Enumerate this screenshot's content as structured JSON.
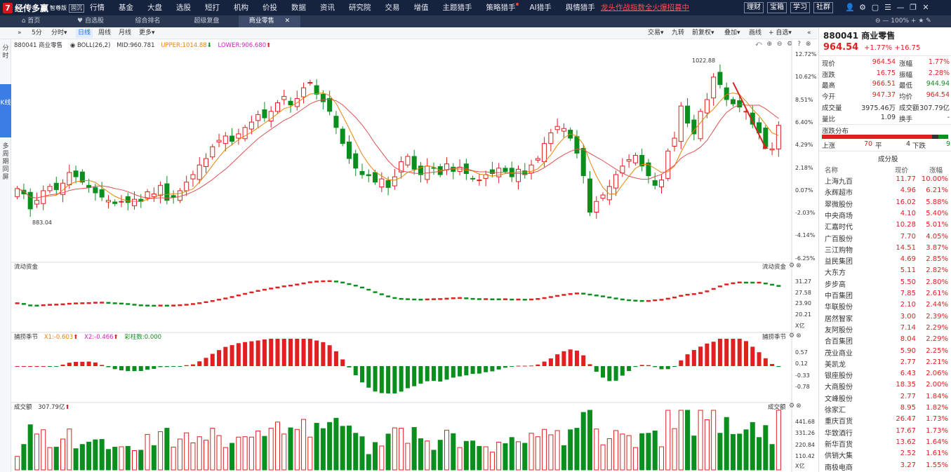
{
  "topbar": {
    "logo": "经传多赢",
    "logo_sub": "智尊版",
    "logo_badge": "固沉",
    "menu": [
      "行情",
      "基金",
      "大盘",
      "选股",
      "短打",
      "机构",
      "价投",
      "数据",
      "资讯",
      "研究院",
      "交易",
      "增值",
      "主题猎手",
      "策略猎手",
      "AI猎手",
      "舆情猎手"
    ],
    "promo": "龙头作战指数全火爆招募中",
    "buttons": [
      "理财",
      "宝箱",
      "学习",
      "社群"
    ]
  },
  "tabs": {
    "items": [
      "首页",
      "自选股",
      "综合排名",
      "超级复盘",
      "商业零售"
    ],
    "zoom": "100%"
  },
  "chartbar": {
    "periods": [
      "5分",
      "分时",
      "日线",
      "周线",
      "月线",
      "更多"
    ],
    "active": "日线",
    "right": [
      "交易",
      "九转",
      "前复权",
      "叠加",
      "画线",
      "自选"
    ]
  },
  "side": {
    "fenshi": "分时",
    "kxian": "K线",
    "zhouqi": "多周期同屏"
  },
  "legend": {
    "code": "880041 商业零售",
    "boll": "BOLL(26,2)",
    "mid": "MID:960.781",
    "upper": "UPPER:1014.88",
    "lower": "LOWER:906.680"
  },
  "main_axis": [
    "12.72%",
    "10.62%",
    "8.51%",
    "6.40%",
    "4.29%",
    "2.18%",
    "0.07%",
    "-2.03%",
    "-4.14%",
    "-6.25%"
  ],
  "hi_label": "1022.88",
  "lo_label": "883.04",
  "flow": {
    "title": "流动资金",
    "axis": [
      "31.27",
      "27.58",
      "23.90",
      "20.21"
    ],
    "unit": "X亿"
  },
  "capture": {
    "title": "捕捞季节",
    "x1": "X1:-0.603",
    "x2": "X2:-0.466",
    "cz": "彩柱数:0.000",
    "axis": [
      "0.57",
      "0.12",
      "-0.33",
      "-0.78"
    ]
  },
  "vol": {
    "title": "成交额",
    "value": "307.79亿",
    "axis": [
      "441.68",
      "331.26",
      "220.84",
      "110.42"
    ],
    "unit": "X亿"
  },
  "quote": {
    "title": "880041 商业零售",
    "price": "964.54",
    "change": "+1.77%  +16.75",
    "rows": [
      [
        "现价",
        "964.54",
        "涨幅",
        "1.77%"
      ],
      [
        "涨跌",
        "16.75",
        "振幅",
        "2.28%"
      ],
      [
        "最高",
        "966.51",
        "最低",
        "944.94"
      ],
      [
        "今开",
        "947.37",
        "均价",
        "964.54"
      ],
      [
        "成交量",
        "3975.46万",
        "成交额",
        "307.79亿"
      ],
      [
        "量比",
        "1.09",
        "换手",
        "-"
      ]
    ],
    "dist_title": "涨跌分布",
    "up_label": "上涨",
    "up": "70",
    "flat_label": "平",
    "flat": "4",
    "down_label": "下跌",
    "down": "9",
    "comp_title": "成分股",
    "hdr": [
      "名称",
      "现价",
      "涨幅"
    ],
    "stocks": [
      [
        "上海九百",
        "11.77",
        "10.00%"
      ],
      [
        "永辉超市",
        "4.96",
        "6.21%"
      ],
      [
        "翠微股份",
        "16.02",
        "5.88%"
      ],
      [
        "中央商场",
        "4.10",
        "5.40%"
      ],
      [
        "汇嘉时代",
        "10.28",
        "5.01%"
      ],
      [
        "广百股份",
        "7.70",
        "4.05%"
      ],
      [
        "三江购物",
        "14.51",
        "3.87%"
      ],
      [
        "益民集团",
        "4.69",
        "2.85%"
      ],
      [
        "大东方",
        "5.11",
        "2.82%"
      ],
      [
        "步步高",
        "5.50",
        "2.80%"
      ],
      [
        "中百集团",
        "7.85",
        "2.61%"
      ],
      [
        "华联股份",
        "2.10",
        "2.44%"
      ],
      [
        "居然智家",
        "3.00",
        "2.39%"
      ],
      [
        "友阿股份",
        "7.14",
        "2.29%"
      ],
      [
        "合百集团",
        "8.04",
        "2.29%"
      ],
      [
        "茂业商业",
        "5.90",
        "2.25%"
      ],
      [
        "美凯龙",
        "2.77",
        "2.21%"
      ],
      [
        "银座股份",
        "6.43",
        "2.06%"
      ],
      [
        "大商股份",
        "18.35",
        "2.00%"
      ],
      [
        "文峰股份",
        "2.77",
        "1.84%"
      ],
      [
        "徐家汇",
        "8.95",
        "1.82%"
      ],
      [
        "重庆百货",
        "26.47",
        "1.73%"
      ],
      [
        "华致酒行",
        "17.67",
        "1.73%"
      ],
      [
        "新华百货",
        "13.62",
        "1.64%"
      ],
      [
        "供销大集",
        "2.52",
        "1.61%"
      ],
      [
        "南极电商",
        "3.27",
        "1.55%"
      ]
    ]
  },
  "chart_data": {
    "type": "candlestick",
    "candles_close_pct": [
      0.3,
      -0.2,
      -1.6,
      -0.8,
      0.1,
      0.5,
      0.2,
      0.8,
      1.8,
      1.4,
      0.9,
      0.4,
      -0.1,
      -0.5,
      -0.8,
      -1.1,
      -0.9,
      -1.0,
      -0.7,
      -0.9,
      0.0,
      -0.2,
      0.6,
      -0.8,
      -0.5,
      0.1,
      0.9,
      1.6,
      2.5,
      3.1,
      4.2,
      4.8,
      5.2,
      4.7,
      5.4,
      6.0,
      6.5,
      7.2,
      6.9,
      7.5,
      8.3,
      8.9,
      8.1,
      8.7,
      9.7,
      10.2,
      9.1,
      8.4,
      7.5,
      6.0,
      4.5,
      3.1,
      2.2,
      1.6,
      1.5,
      0.9,
      1.2,
      0.4,
      1.4,
      2.8,
      3.3,
      2.1,
      1.6,
      2.4,
      2.2,
      1.6,
      2.6,
      1.9,
      2.3,
      1.7,
      1.2,
      1.1,
      1.6,
      1.7,
      2.2,
      1.9,
      1.4,
      2.1,
      1.6,
      2.5,
      3.1,
      4.5,
      5.5,
      6.1,
      5.9,
      5.0,
      3.6,
      1.5,
      -1.9,
      -0.9,
      -0.3,
      0.5,
      1.6,
      2.4,
      3.0,
      3.4,
      2.4,
      1.5,
      0.6,
      1.1,
      3.8,
      5.0,
      8.0,
      6.4,
      5.4,
      7.5,
      8.6,
      10.7,
      10.0,
      8.6,
      8.2,
      7.9,
      7.5,
      6.3,
      5.5,
      4.2,
      4.0,
      6.2
    ]
  }
}
